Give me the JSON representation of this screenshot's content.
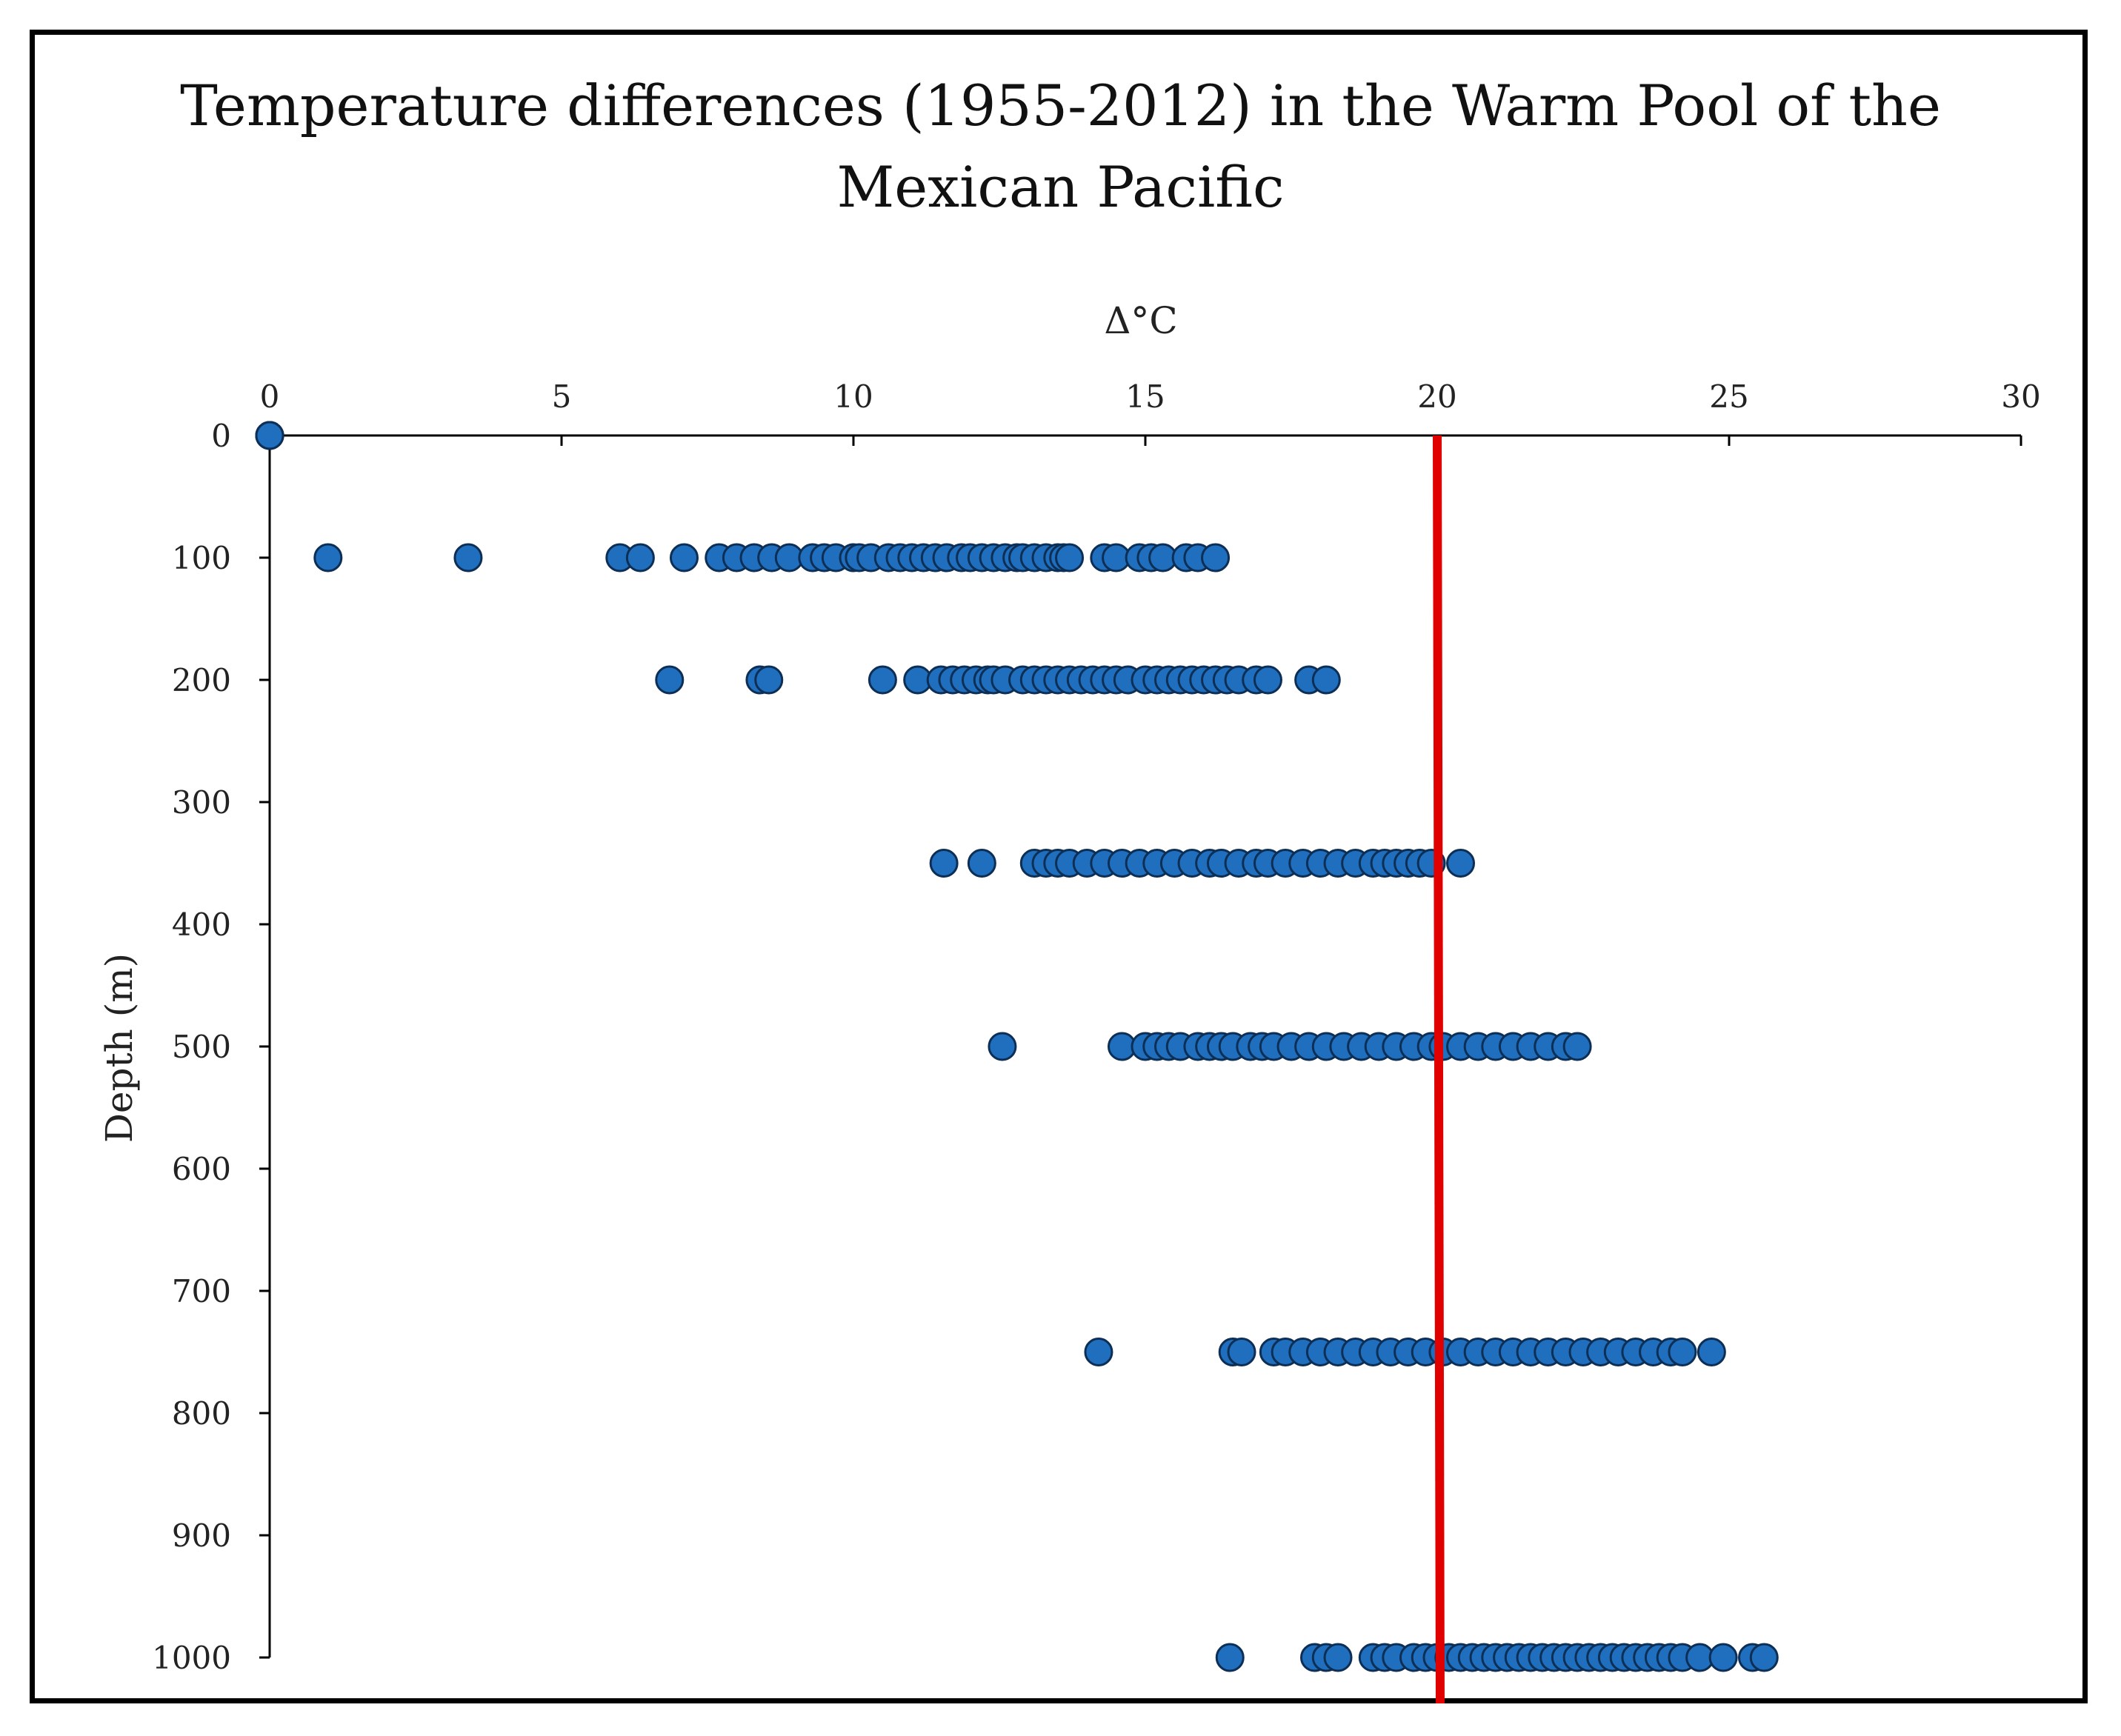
{
  "chart_data": {
    "type": "scatter",
    "title": [
      "Temperature differences (1955-2012) in the Warm Pool of the",
      "Mexican Pacific"
    ],
    "xlabel": "Δ°C",
    "ylabel": "Depth (m)",
    "xlim": [
      0,
      30
    ],
    "ylim": [
      0,
      1000
    ],
    "x_ticks": [
      "0",
      "5",
      "10",
      "15",
      "20",
      "25",
      "30"
    ],
    "y_ticks": [
      "0",
      "100",
      "200",
      "300",
      "400",
      "500",
      "600",
      "700",
      "800",
      "900",
      "1000"
    ],
    "x_axis_position": "top",
    "y_axis_direction": "inverted",
    "reference_line": {
      "x": 20,
      "color": "#e00000"
    },
    "marker_color": "#1f6fbe",
    "marker_edge": "#0d2e55",
    "groups": [
      {
        "depth": 0,
        "x": [
          0,
          0,
          0,
          0
        ]
      },
      {
        "depth": 100,
        "x": [
          1.0,
          3.4,
          6.0,
          6.35,
          7.1,
          7.7,
          8.0,
          8.3,
          8.6,
          8.9,
          9.3,
          9.5,
          9.7,
          10.0,
          10.1,
          10.3,
          10.6,
          10.8,
          11.0,
          11.2,
          11.4,
          11.6,
          11.85,
          12.0,
          12.2,
          12.4,
          12.6,
          12.8,
          12.9,
          13.1,
          13.3,
          13.5,
          13.6,
          13.7,
          14.3,
          14.5,
          14.9,
          15.1,
          15.3,
          15.7,
          15.9,
          16.2
        ]
      },
      {
        "depth": 200,
        "x": [
          6.85,
          8.4,
          8.55,
          10.5,
          11.1,
          11.5,
          11.7,
          11.9,
          12.1,
          12.3,
          12.4,
          12.6,
          12.9,
          13.1,
          13.3,
          13.5,
          13.7,
          13.9,
          14.1,
          14.3,
          14.5,
          14.7,
          15.0,
          15.2,
          15.4,
          15.6,
          15.8,
          16.0,
          16.2,
          16.4,
          16.6,
          16.9,
          17.1,
          17.8,
          18.1
        ]
      },
      {
        "depth": 350,
        "x": [
          11.55,
          12.2,
          13.1,
          13.3,
          13.5,
          13.7,
          14.0,
          14.3,
          14.6,
          14.9,
          15.2,
          15.5,
          15.8,
          16.1,
          16.3,
          16.6,
          16.9,
          17.1,
          17.4,
          17.7,
          18.0,
          18.3,
          18.6,
          18.9,
          19.1,
          19.3,
          19.5,
          19.7,
          19.9,
          20.4
        ]
      },
      {
        "depth": 500,
        "x": [
          12.55,
          14.6,
          15.0,
          15.2,
          15.4,
          15.6,
          15.9,
          16.1,
          16.3,
          16.5,
          16.8,
          17.0,
          17.2,
          17.5,
          17.8,
          18.1,
          18.4,
          18.7,
          19.0,
          19.3,
          19.6,
          19.9,
          20.1,
          20.4,
          20.7,
          21.0,
          21.3,
          21.6,
          21.9,
          22.2,
          22.4
        ]
      },
      {
        "depth": 750,
        "x": [
          14.2,
          16.5,
          16.65,
          17.2,
          17.4,
          17.7,
          18.0,
          18.3,
          18.6,
          18.9,
          19.2,
          19.5,
          19.8,
          20.1,
          20.4,
          20.7,
          21.0,
          21.3,
          21.6,
          21.9,
          22.2,
          22.5,
          22.8,
          23.1,
          23.4,
          23.7,
          24.0,
          24.2,
          24.7
        ]
      },
      {
        "depth": 1000,
        "x": [
          16.45,
          17.9,
          18.1,
          18.3,
          18.9,
          19.1,
          19.3,
          19.6,
          19.8,
          20.0,
          20.2,
          20.4,
          20.6,
          20.8,
          21.0,
          21.2,
          21.4,
          21.6,
          21.8,
          22.0,
          22.2,
          22.4,
          22.6,
          22.8,
          23.0,
          23.2,
          23.4,
          23.6,
          23.8,
          24.0,
          24.2,
          24.5,
          24.9,
          25.4,
          25.6
        ]
      }
    ]
  }
}
